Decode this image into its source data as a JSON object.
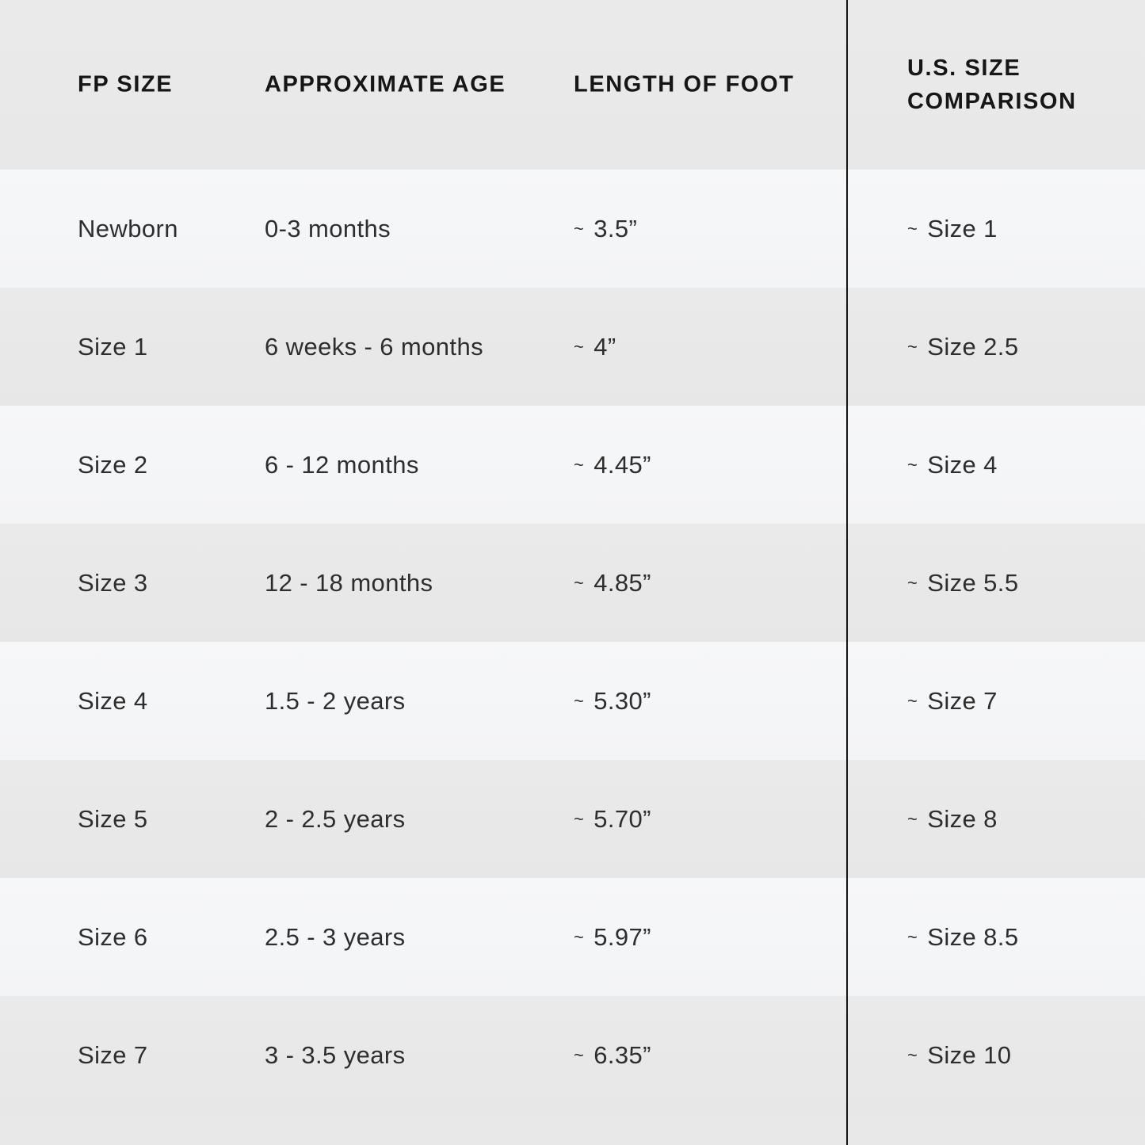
{
  "table": {
    "headers": {
      "fp": "FP SIZE",
      "age": "APPROXIMATE AGE",
      "length": "LENGTH OF FOOT",
      "us": "U.S. SIZE COMPARISON"
    },
    "approx_symbol": "~",
    "rows": [
      {
        "fp": "Newborn",
        "age": "0-3 months",
        "length": "3.5”",
        "us": "Size 1"
      },
      {
        "fp": "Size 1",
        "age": "6 weeks - 6 months",
        "length": "4”",
        "us": "Size 2.5"
      },
      {
        "fp": "Size 2",
        "age": "6 - 12 months",
        "length": "4.45”",
        "us": "Size 4"
      },
      {
        "fp": "Size 3",
        "age": "12 - 18 months",
        "length": "4.85”",
        "us": "Size 5.5"
      },
      {
        "fp": "Size 4",
        "age": "1.5 - 2 years",
        "length": "5.30”",
        "us": "Size 7"
      },
      {
        "fp": "Size 5",
        "age": "2 - 2.5 years",
        "length": "5.70”",
        "us": "Size 8"
      },
      {
        "fp": "Size 6",
        "age": "2.5 - 3 years",
        "length": "5.97”",
        "us": "Size 8.5"
      },
      {
        "fp": "Size 7",
        "age": "3 - 3.5 years",
        "length": "6.35”",
        "us": "Size 10"
      }
    ]
  },
  "colors": {
    "header_bg": "#e9e9e9",
    "row_light": "#f5f6f8",
    "row_dark": "#e8e8e9",
    "divider": "#141414",
    "text": "#2e2e2e"
  }
}
